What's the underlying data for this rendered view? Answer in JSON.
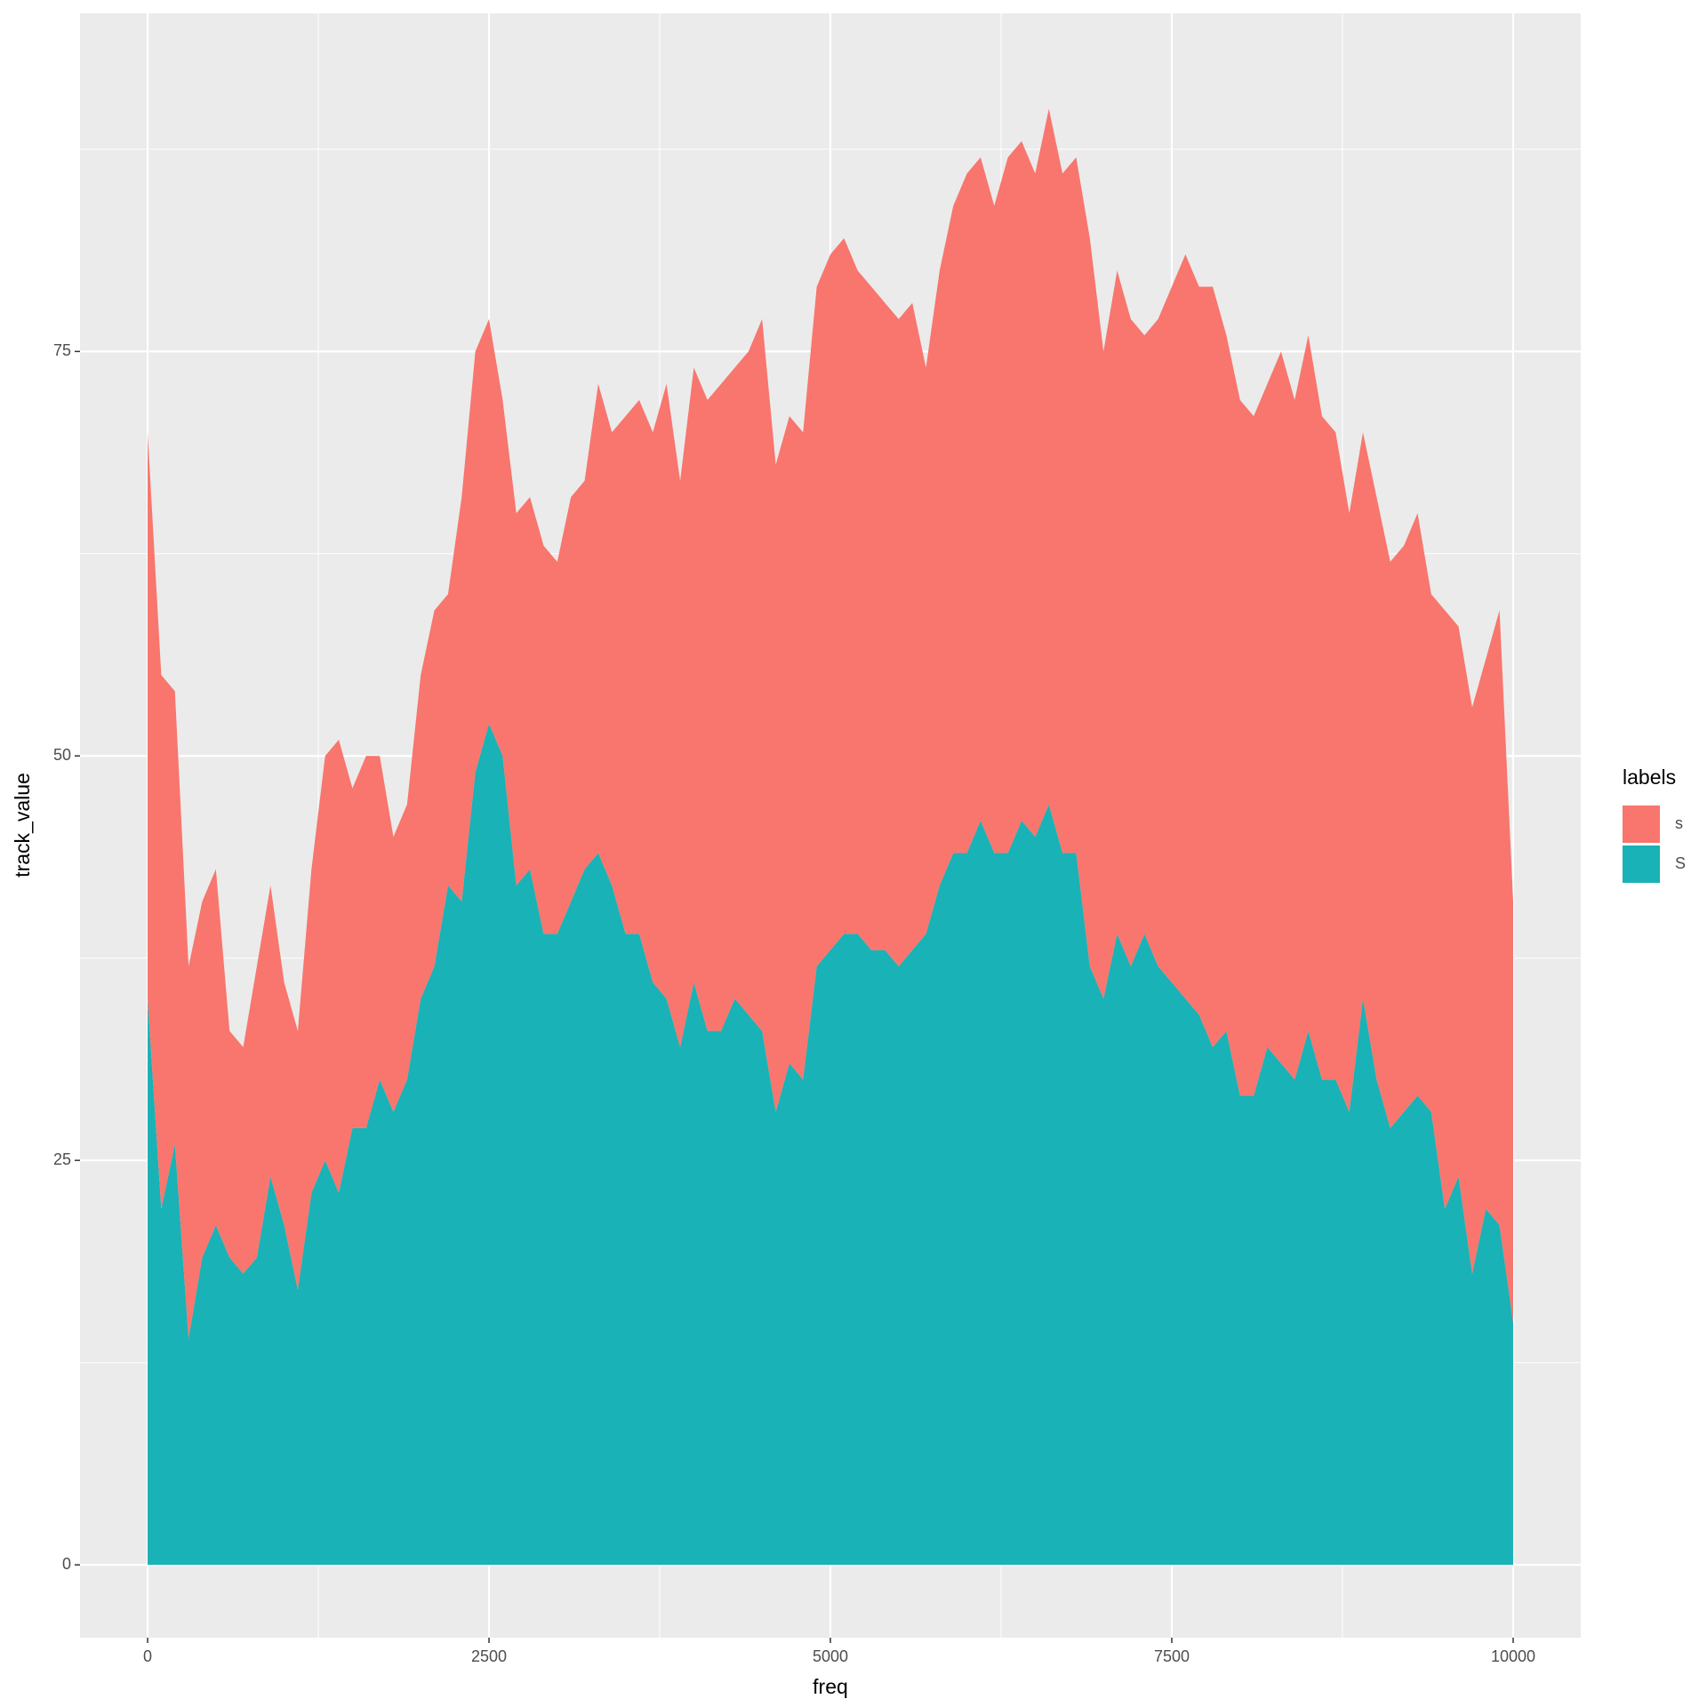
{
  "chart_data": {
    "type": "area",
    "stacked": true,
    "x_label": "freq",
    "y_label": "track_value",
    "legend_title": "labels",
    "x": [
      0,
      100,
      200,
      300,
      400,
      500,
      600,
      700,
      800,
      900,
      1000,
      1100,
      1200,
      1300,
      1400,
      1500,
      1600,
      1700,
      1800,
      1900,
      2000,
      2100,
      2200,
      2300,
      2400,
      2500,
      2600,
      2700,
      2800,
      2900,
      3000,
      3100,
      3200,
      3300,
      3400,
      3500,
      3600,
      3700,
      3800,
      3900,
      4000,
      4100,
      4200,
      4300,
      4400,
      4500,
      4600,
      4700,
      4800,
      4900,
      5000,
      5100,
      5200,
      5300,
      5400,
      5500,
      5600,
      5700,
      5800,
      5900,
      6000,
      6100,
      6200,
      6300,
      6400,
      6500,
      6600,
      6700,
      6800,
      6900,
      7000,
      7100,
      7200,
      7300,
      7400,
      7500,
      7600,
      7700,
      7800,
      7900,
      8000,
      8100,
      8200,
      8300,
      8400,
      8500,
      8600,
      8700,
      8800,
      8900,
      9000,
      9100,
      9200,
      9300,
      9400,
      9500,
      9600,
      9700,
      9800,
      9900,
      10000
    ],
    "series": [
      {
        "name": "s",
        "color": "#f8766d",
        "values": [
          35,
          33,
          28,
          23,
          22,
          22,
          14,
          14,
          18,
          18,
          15,
          16,
          20,
          25,
          28,
          21,
          23,
          20,
          17,
          17,
          20,
          22,
          18,
          25,
          26,
          25,
          22,
          23,
          23,
          24,
          23,
          25,
          24,
          29,
          28,
          32,
          33,
          34,
          38,
          35,
          38,
          39,
          40,
          39,
          41,
          44,
          40,
          40,
          40,
          42,
          43,
          43,
          41,
          41,
          40,
          40,
          40,
          35,
          38,
          40,
          42,
          41,
          40,
          43,
          42,
          41,
          43,
          42,
          43,
          45,
          40,
          41,
          40,
          37,
          40,
          43,
          46,
          45,
          47,
          43,
          43,
          42,
          41,
          44,
          42,
          43,
          41,
          40,
          37,
          35,
          36,
          35,
          35,
          36,
          32,
          37,
          34,
          35,
          34,
          38,
          26
        ]
      },
      {
        "name": "S",
        "color": "#19b2b6",
        "values": [
          35,
          22,
          26,
          14,
          19,
          21,
          19,
          18,
          19,
          24,
          21,
          17,
          23,
          25,
          23,
          27,
          27,
          30,
          28,
          30,
          35,
          37,
          42,
          41,
          49,
          52,
          50,
          42,
          43,
          39,
          39,
          41,
          43,
          44,
          42,
          39,
          39,
          36,
          35,
          32,
          36,
          33,
          33,
          35,
          34,
          33,
          28,
          31,
          30,
          37,
          38,
          39,
          39,
          38,
          38,
          37,
          38,
          39,
          42,
          44,
          44,
          46,
          44,
          44,
          46,
          45,
          47,
          44,
          44,
          37,
          35,
          39,
          37,
          39,
          37,
          36,
          35,
          34,
          32,
          33,
          29,
          29,
          32,
          31,
          30,
          33,
          30,
          30,
          28,
          35,
          30,
          27,
          28,
          29,
          28,
          22,
          24,
          18,
          22,
          21,
          15
        ]
      }
    ],
    "xlim": [
      -495,
      10495
    ],
    "xticks": [
      0,
      2500,
      5000,
      7500,
      10000
    ],
    "ylim": [
      -4.5,
      95.9
    ],
    "yticks": [
      0,
      25,
      50,
      75
    ],
    "grid": true,
    "legend": "right"
  }
}
